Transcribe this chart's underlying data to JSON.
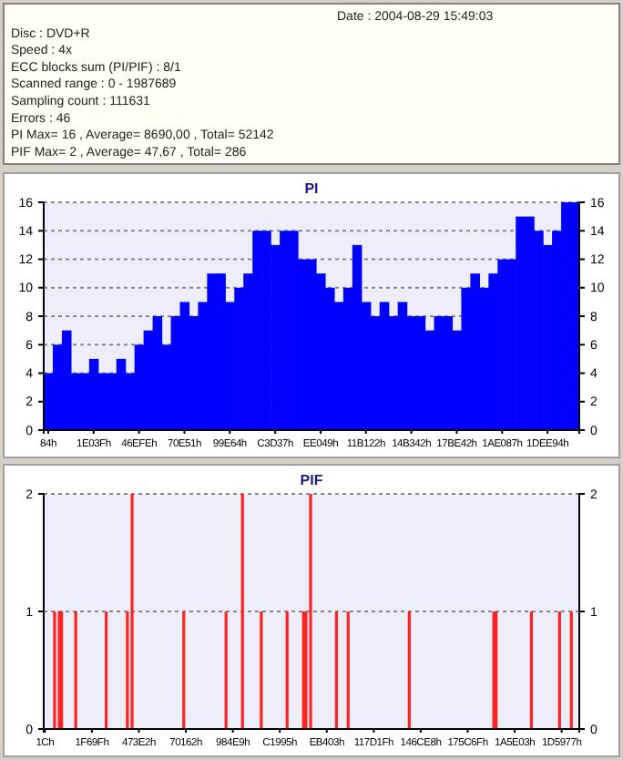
{
  "chart_data": [
    {
      "type": "other",
      "annotations": [
        "Date : 2004-08-29 15:49:03",
        "Disc : DVD+R",
        "Speed : 4x",
        "ECC blocks sum (PI/PIF) : 8/1",
        "Scanned range : 0 - 1987689",
        "Sampling count : 111631",
        "Errors : 46",
        "PI Max= 16 , Average= 8690,00 , Total= 52142",
        "PIF Max= 2 , Average= 47,67 , Total= 286"
      ]
    },
    {
      "type": "bar",
      "title": "PI",
      "color": "#0000ff",
      "categories": [
        "84h",
        null,
        null,
        null,
        null,
        "1E03Fh",
        null,
        null,
        null,
        null,
        "46EFEh",
        null,
        null,
        null,
        null,
        "70E51h",
        null,
        null,
        null,
        null,
        "99E64h",
        null,
        null,
        null,
        null,
        "C3D37h",
        null,
        null,
        null,
        null,
        "EE049h",
        null,
        null,
        null,
        null,
        "11B122h",
        null,
        null,
        null,
        null,
        "14B342h",
        null,
        null,
        null,
        null,
        "17BE42h",
        null,
        null,
        null,
        null,
        "1AE087h",
        null,
        null,
        null,
        null,
        "1DEE94h",
        null,
        null,
        null
      ],
      "values": [
        4,
        6,
        7,
        4,
        4,
        5,
        4,
        4,
        5,
        4,
        6,
        7,
        8,
        6,
        8,
        9,
        8,
        9,
        11,
        11,
        9,
        10,
        11,
        14,
        14,
        13,
        14,
        14,
        12,
        12,
        11,
        10,
        9,
        10,
        13,
        9,
        8,
        9,
        8,
        9,
        8,
        8,
        7,
        8,
        8,
        7,
        10,
        11,
        10,
        11,
        12,
        12,
        15,
        15,
        14,
        13,
        14,
        16,
        16
      ],
      "ylim": [
        0,
        16
      ],
      "yticks": [
        0,
        2,
        4,
        6,
        8,
        10,
        12,
        14,
        16
      ],
      "y2lim": [
        0,
        16
      ],
      "y2ticks": [
        0,
        2,
        4,
        6,
        8,
        10,
        12,
        14,
        16
      ],
      "grid": "y"
    },
    {
      "type": "bar",
      "title": "PIF",
      "color": "#ff2020",
      "categories": [
        "1Ch",
        null,
        null,
        null,
        null,
        null,
        null,
        null,
        null,
        null,
        null,
        null,
        null,
        null,
        null,
        null,
        null,
        null,
        null,
        null,
        "1F69Fh",
        null,
        null,
        null,
        null,
        null,
        null,
        null,
        null,
        null,
        null,
        null,
        null,
        null,
        null,
        null,
        null,
        null,
        null,
        null,
        "473E2h",
        null,
        null,
        null,
        null,
        null,
        null,
        null,
        null,
        null,
        null,
        null,
        null,
        null,
        null,
        null,
        null,
        null,
        null,
        null,
        "70162h",
        null,
        null,
        null,
        null,
        null,
        null,
        null,
        null,
        null,
        null,
        null,
        null,
        null,
        null,
        null,
        null,
        null,
        null,
        null,
        "984E9h",
        null,
        null,
        null,
        null,
        null,
        null,
        null,
        null,
        null,
        null,
        null,
        null,
        null,
        null,
        null,
        null,
        null,
        null,
        null,
        "C1995h",
        null,
        null,
        null,
        null,
        null,
        null,
        null,
        null,
        null,
        null,
        null,
        null,
        null,
        null,
        null,
        null,
        null,
        null,
        null,
        "EB403h",
        null,
        null,
        null,
        null,
        null,
        null,
        null,
        null,
        null,
        null,
        null,
        null,
        null,
        null,
        null,
        null,
        null,
        null,
        null,
        "117D1Fh",
        null,
        null,
        null,
        null,
        null,
        null,
        null,
        null,
        null,
        null,
        null,
        null,
        null,
        null,
        null,
        null,
        null,
        null,
        null,
        "146CE8h",
        null,
        null,
        null,
        null,
        null,
        null,
        null,
        null,
        null,
        null,
        null,
        null,
        null,
        null,
        null,
        null,
        null,
        null,
        null,
        "175C6Fh",
        null,
        null,
        null,
        null,
        null,
        null,
        null,
        null,
        null,
        null,
        null,
        null,
        null,
        null,
        null,
        null,
        null,
        null,
        null,
        "1A5E03h",
        null,
        null,
        null,
        null,
        null,
        null,
        null,
        null,
        null,
        null,
        null,
        null,
        null,
        null,
        null,
        null,
        null,
        null,
        null,
        "1D5977h",
        null,
        null,
        null,
        null,
        null,
        null,
        null
      ],
      "values": [
        0,
        0,
        0,
        0,
        1,
        0,
        1,
        1,
        0,
        0,
        0,
        0,
        0,
        1,
        0,
        0,
        0,
        0,
        0,
        0,
        0,
        0,
        0,
        0,
        0,
        0,
        1,
        0,
        0,
        0,
        0,
        0,
        0,
        0,
        0,
        1,
        0,
        2,
        0,
        0,
        0,
        0,
        0,
        0,
        0,
        0,
        0,
        0,
        0,
        0,
        0,
        0,
        0,
        0,
        0,
        0,
        0,
        0,
        0,
        1,
        0,
        0,
        0,
        0,
        0,
        0,
        0,
        0,
        0,
        0,
        0,
        0,
        0,
        0,
        0,
        0,
        0,
        1,
        0,
        0,
        0,
        0,
        0,
        0,
        2,
        0,
        0,
        0,
        0,
        0,
        0,
        0,
        1,
        0,
        0,
        0,
        0,
        0,
        0,
        0,
        0,
        0,
        0,
        1,
        0,
        0,
        0,
        0,
        0,
        0,
        1,
        1,
        0,
        2,
        0,
        0,
        0,
        0,
        0,
        0,
        0,
        0,
        0,
        0,
        1,
        0,
        0,
        0,
        0,
        1,
        0,
        0,
        0,
        0,
        0,
        0,
        0,
        0,
        0,
        0,
        0,
        0,
        0,
        0,
        0,
        0,
        0,
        0,
        0,
        0,
        0,
        0,
        0,
        0,
        0,
        1,
        0,
        0,
        0,
        0,
        0,
        0,
        0,
        0,
        0,
        0,
        0,
        0,
        0,
        0,
        0,
        0,
        0,
        0,
        0,
        0,
        0,
        0,
        0,
        0,
        0,
        0,
        0,
        0,
        0,
        0,
        0,
        0,
        0,
        0,
        0,
        1,
        1,
        0,
        0,
        0,
        0,
        0,
        0,
        0,
        0,
        0,
        0,
        0,
        0,
        0,
        0,
        1,
        0,
        0,
        0,
        0,
        0,
        0,
        0,
        0,
        0,
        0,
        0,
        1,
        0,
        0,
        0,
        0,
        1,
        0,
        0,
        0
      ],
      "ylim": [
        0,
        2
      ],
      "yticks": [
        0,
        1,
        2
      ],
      "y2lim": [
        0,
        2
      ],
      "y2ticks": [
        0,
        1,
        2
      ],
      "grid": "y"
    }
  ]
}
